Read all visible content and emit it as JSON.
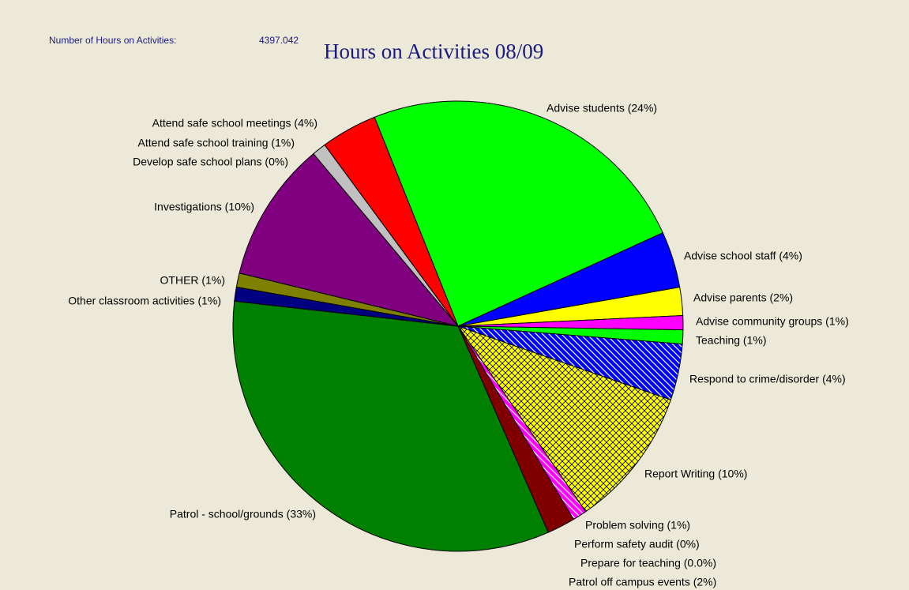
{
  "chart_data": {
    "type": "pie",
    "title": "Hours on Activities 08/09",
    "total_label": "Number of Hours on Activities:",
    "total": 4397.042,
    "categories": [
      "Advise students (24%)",
      "Advise school staff (4%)",
      "Advise parents (2%)",
      "Advise community groups (1%)",
      "Teaching (1%)",
      "Respond to crime/disorder (4%)",
      "Report Writing (10%)",
      "Prepare for teaching (0.0%)",
      "Perform safety audit (0%)",
      "Problem solving (1%)",
      "Patrol off campus events (2%)",
      "Patrol - school/grounds (33%)",
      "Other classroom activities (1%)",
      "OTHER (1%)",
      "Investigations (10%)",
      "Develop safe school plans (0%)",
      "Attend safe school training (1%)",
      "Attend safe school meetings (4%)"
    ],
    "values": [
      24,
      4,
      2,
      1,
      1,
      4,
      10,
      0.0,
      0,
      1,
      2,
      33,
      1,
      1,
      10,
      0,
      1,
      4
    ],
    "colors": [
      "#00ff00",
      "#0000ff",
      "#ffff00",
      "#ff00ff",
      "#00ff00",
      "#0000ff",
      "#ffff00",
      "#ffffff",
      "#ffffff",
      "#ff00ff",
      "#800000",
      "#008000",
      "#000080",
      "#808000",
      "#800080",
      "#008080",
      "#c0c0c0",
      "#ff0000"
    ],
    "patterns": [
      null,
      null,
      null,
      null,
      null,
      "hatch",
      "crosshatch",
      null,
      null,
      "hatch",
      null,
      null,
      null,
      null,
      null,
      null,
      null,
      null
    ]
  }
}
